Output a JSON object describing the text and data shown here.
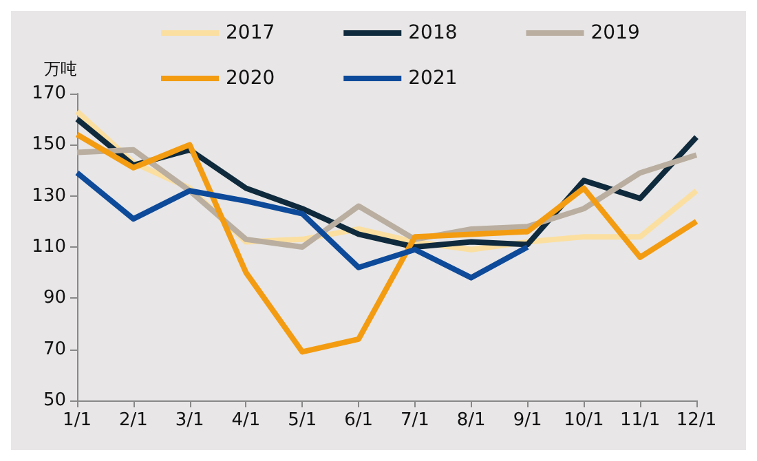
{
  "chart_data": {
    "type": "line",
    "ylabel": "万吨",
    "categories": [
      "1/1",
      "2/1",
      "3/1",
      "4/1",
      "5/1",
      "6/1",
      "7/1",
      "8/1",
      "9/1",
      "10/1",
      "11/1",
      "12/1"
    ],
    "series": [
      {
        "name": "2017",
        "color": "#fbdfa0",
        "values": [
          163,
          143,
          133,
          112,
          113,
          117,
          112,
          109,
          112,
          114,
          114,
          132
        ]
      },
      {
        "name": "2018",
        "color": "#0f2a3c",
        "values": [
          160,
          142,
          148,
          133,
          125,
          115,
          110,
          112,
          111,
          136,
          129,
          153
        ]
      },
      {
        "name": "2019",
        "color": "#b9aea0",
        "values": [
          147,
          148,
          132,
          113,
          110,
          126,
          113,
          117,
          118,
          125,
          139,
          146
        ]
      },
      {
        "name": "2020",
        "color": "#f39c12",
        "values": [
          154,
          141,
          150,
          100,
          69,
          74,
          114,
          115,
          116,
          133,
          106,
          120
        ]
      },
      {
        "name": "2021",
        "color": "#0d4a9a",
        "values": [
          139,
          121,
          132,
          128,
          123,
          102,
          109,
          98,
          110,
          null,
          null,
          null
        ]
      }
    ],
    "ylim": [
      50,
      170
    ],
    "yticks": [
      50,
      70,
      90,
      110,
      130,
      150,
      170
    ],
    "grid": false,
    "legend": "top",
    "marker": "none",
    "line_style": "solid"
  }
}
